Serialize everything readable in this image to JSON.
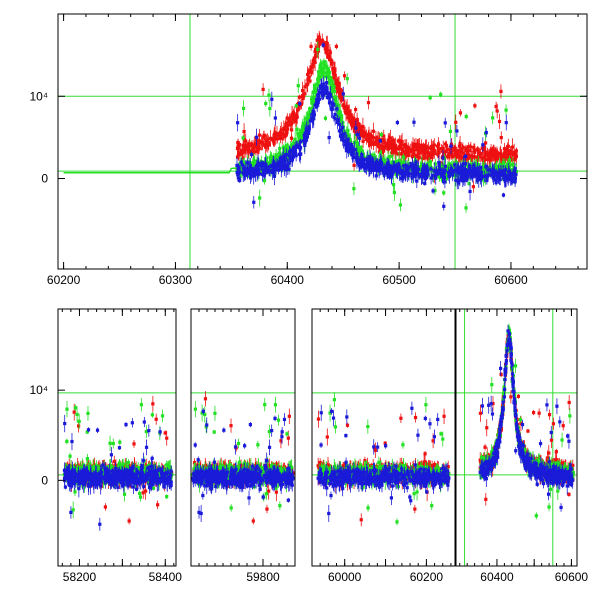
{
  "colors": {
    "green": "#22e022",
    "red": "#ee1111",
    "blue": "#1a1ad8",
    "frame": "#000000",
    "guide": "#33dd33"
  },
  "chart_data": [
    {
      "type": "scatter",
      "panel": "top",
      "xlabel": "",
      "ylabel": "",
      "xlim": [
        60195,
        60668
      ],
      "ylim": [
        -11000,
        20000
      ],
      "x_ticks": [
        60200,
        60300,
        60400,
        60500,
        60600
      ],
      "x_tick_labels": [
        "60200",
        "60300",
        "60400",
        "60500",
        "60600"
      ],
      "y_ticks": [
        0,
        10000
      ],
      "y_tick_labels": [
        "0",
        "10⁴"
      ],
      "reference_lines": {
        "horizontal": [
          900,
          10000
        ],
        "vertical": [
          60313,
          60550
        ]
      },
      "series": [
        {
          "color": "red",
          "x_range": [
            60355,
            60605
          ],
          "baseline": 2800,
          "peak_x": 60431,
          "peak_y": 16500,
          "peak_width": 18
        },
        {
          "color": "green",
          "x_range": [
            60355,
            60605
          ],
          "baseline": 800,
          "peak_x": 60433,
          "peak_y": 13500,
          "peak_width": 15
        },
        {
          "color": "blue",
          "x_range": [
            60355,
            60605
          ],
          "baseline": 400,
          "peak_x": 60433,
          "peak_y": 11000,
          "peak_width": 15
        }
      ]
    },
    {
      "type": "scatter",
      "panel": "bottom",
      "xlabel": "",
      "ylabel": "",
      "ylim": [
        -9500,
        19000
      ],
      "y_ticks": [
        0,
        10000
      ],
      "y_tick_labels": [
        "0",
        "10⁴"
      ],
      "reference_lines": {
        "horizontal": [
          600,
          9700
        ],
        "vertical": [
          60313,
          60550
        ]
      },
      "segments": [
        {
          "xlim": [
            58150,
            58425
          ],
          "x_ticks": [
            58200,
            58300,
            58400
          ],
          "x_tick_labels": [
            "58200",
            "",
            "58400"
          ],
          "data_range": [
            58165,
            58415
          ],
          "peaks": []
        },
        {
          "xlim": [
            59620,
            59880
          ],
          "x_ticks": [
            59800
          ],
          "x_tick_labels": [
            "59800"
          ],
          "data_range": [
            59625,
            59875
          ],
          "peaks": []
        },
        {
          "xlim": [
            59920,
            60270
          ],
          "x_ticks": [
            60000,
            60100,
            60200
          ],
          "x_tick_labels": [
            "60000",
            "",
            "60200"
          ],
          "data_range": [
            59935,
            60255
          ],
          "peaks": []
        },
        {
          "xlim": [
            60290,
            60615
          ],
          "x_ticks": [
            60400,
            60500,
            60600
          ],
          "x_tick_labels": [
            "60400",
            "",
            "60600"
          ],
          "data_range": [
            60355,
            60605
          ],
          "peaks": [
            {
              "x": 60432,
              "y": 16000,
              "width": 16
            }
          ]
        }
      ],
      "series": [
        {
          "color": "red",
          "baseline": 800
        },
        {
          "color": "green",
          "baseline": 700
        },
        {
          "color": "blue",
          "baseline": 300
        }
      ]
    }
  ]
}
